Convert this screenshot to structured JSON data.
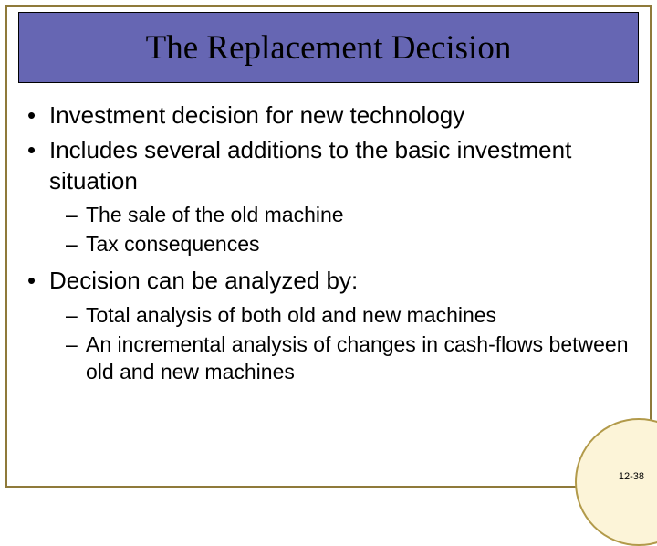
{
  "slide": {
    "title": "The Replacement Decision",
    "page_number": "12-38",
    "bullets": [
      {
        "text": "Investment decision for new technology"
      },
      {
        "text": "Includes several additions to the basic investment situation",
        "sub": [
          "The sale of the old machine",
          "Tax consequences"
        ]
      },
      {
        "text": "Decision can be analyzed by:",
        "sub": [
          "Total analysis of both old and new machines",
          "An incremental analysis of changes in cash-flows between old and new machines"
        ]
      }
    ]
  },
  "style": {
    "title_bg": "#6666b3",
    "title_border": "#000000",
    "title_font": "Times New Roman",
    "title_fontsize": 37,
    "frame_border": "#8f7a3a",
    "body_font": "Arial",
    "body_fontsize_l1": 26,
    "body_fontsize_l2": 23,
    "corner_fill": "#fcf4d8",
    "corner_border": "#b29a4a",
    "page_num_fontsize": 11,
    "background": "#ffffff"
  }
}
